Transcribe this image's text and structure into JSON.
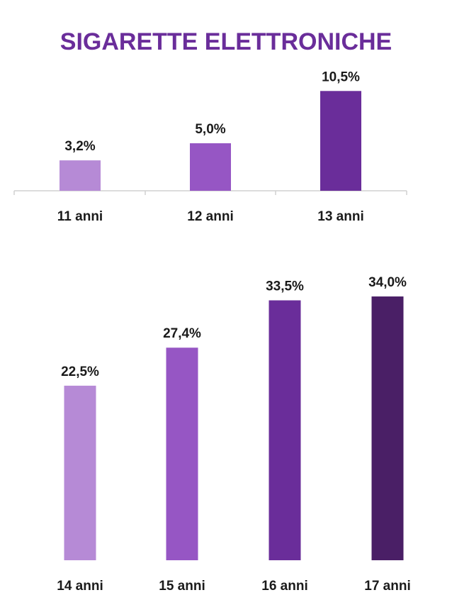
{
  "page": {
    "title": "SIGARETTE ELETTRONICHE",
    "title_color": "#6a2d9a"
  },
  "chart_data": [
    {
      "type": "bar",
      "categories": [
        "11 anni",
        "12 anni",
        "13 anni"
      ],
      "values": [
        3.2,
        5.0,
        10.5
      ],
      "value_labels": [
        "3,2%",
        "5,0%",
        "10,5%"
      ],
      "colors": [
        "#b68ad6",
        "#9656c4",
        "#6a2d9a"
      ],
      "unit": "%",
      "axis_line_color": "#d0d0d0"
    },
    {
      "type": "bar",
      "categories": [
        "14 anni",
        "15 anni",
        "16 anni",
        "17 anni"
      ],
      "values": [
        22.5,
        27.4,
        33.5,
        34.0
      ],
      "value_labels": [
        "22,5%",
        "27,4%",
        "33,5%",
        "34,0%"
      ],
      "colors": [
        "#b68ad6",
        "#9656c4",
        "#6a2d9a",
        "#4a1f66"
      ],
      "unit": "%"
    }
  ]
}
